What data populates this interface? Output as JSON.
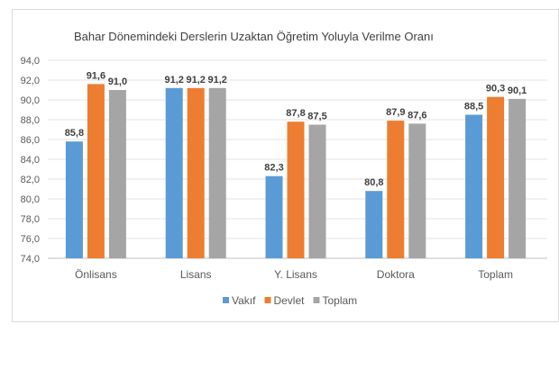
{
  "chart_data": {
    "type": "bar",
    "title": "Bahar Dönemindeki Derslerin Uzaktan Öğretim Yoluyla Verilme Oranı",
    "xlabel": "",
    "ylabel": "",
    "ylim": [
      74,
      94
    ],
    "yticks": [
      "74,0",
      "76,0",
      "78,0",
      "80,0",
      "82,0",
      "84,0",
      "86,0",
      "88,0",
      "90,0",
      "92,0",
      "94,0"
    ],
    "grid": true,
    "legend_position": "bottom",
    "categories": [
      "Önlisans",
      "Lisans",
      "Y. Lisans",
      "Doktora",
      "Toplam"
    ],
    "series": [
      {
        "name": "Vakıf",
        "color": "#5B9BD5",
        "values": [
          85.8,
          91.2,
          82.3,
          80.8,
          88.5
        ],
        "labels": [
          "85,8",
          "91,2",
          "82,3",
          "80,8",
          "88,5"
        ]
      },
      {
        "name": "Devlet",
        "color": "#ED7D31",
        "values": [
          91.6,
          91.2,
          87.8,
          87.9,
          90.3
        ],
        "labels": [
          "91,6",
          "91,2",
          "87,8",
          "87,9",
          "90,3"
        ]
      },
      {
        "name": "Toplam",
        "color": "#A5A5A5",
        "values": [
          91.0,
          91.2,
          87.5,
          87.6,
          90.1
        ],
        "labels": [
          "91,0",
          "91,2",
          "87,5",
          "87,6",
          "90,1"
        ]
      }
    ]
  }
}
